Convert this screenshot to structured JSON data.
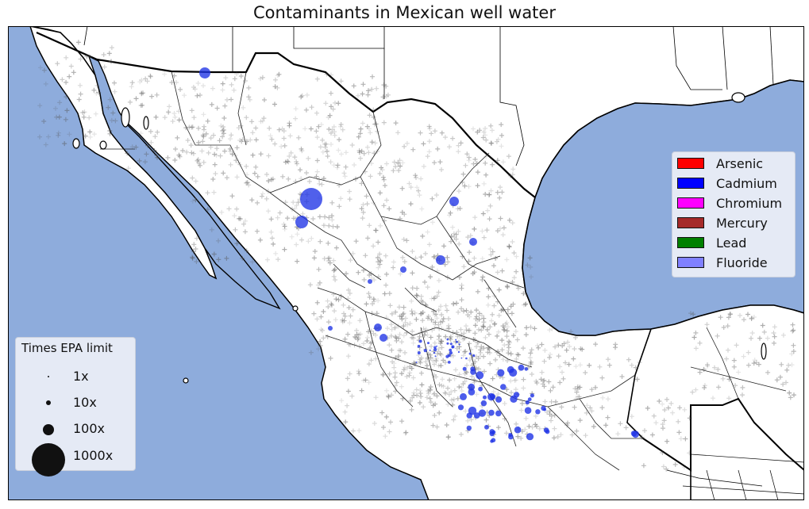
{
  "title": "Contaminants in Mexican well water",
  "contaminant_legend": [
    {
      "label": "Arsenic",
      "color": "#ff0000"
    },
    {
      "label": "Cadmium",
      "color": "#0000ff"
    },
    {
      "label": "Chromium",
      "color": "#ff00ff"
    },
    {
      "label": "Mercury",
      "color": "#a52a2a"
    },
    {
      "label": "Lead",
      "color": "#008000"
    },
    {
      "label": "Fluoride",
      "color": "#8080ff"
    }
  ],
  "size_legend": {
    "title": "Times EPA limit",
    "items": [
      "1x",
      "10x",
      "100x",
      "1000x"
    ]
  },
  "colors": {
    "ocean": "#8eacdc",
    "land": "#ffffff",
    "cadmium_points": "#1f33e6",
    "well_markers": "#888888"
  }
}
